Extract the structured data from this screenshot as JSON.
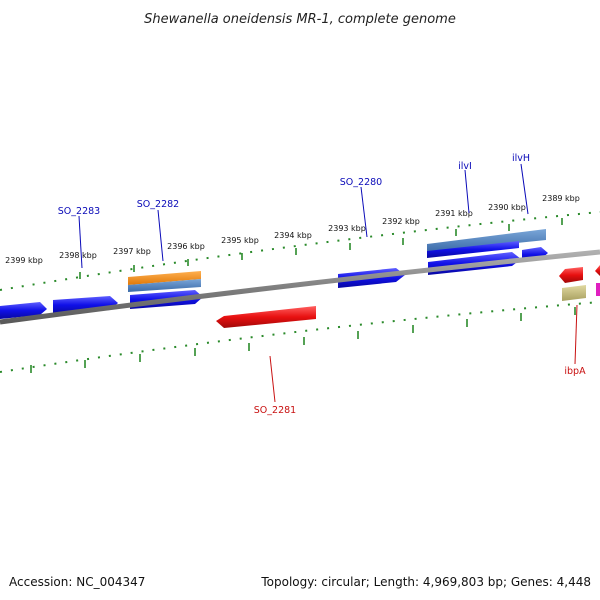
{
  "title": "Shewanella oneidensis MR-1, complete genome",
  "footer": {
    "accession": "Accession: NC_004347",
    "summary": "Topology: circular; Length: 4,969,803 bp; Genes: 4,448"
  },
  "colors": {
    "forward_gene": "#1010e8",
    "reverse_gene": "#e81010",
    "backbone": "#808080",
    "ticks": "#2a8a2a",
    "label_forward": "#0a0ab8",
    "label_reverse": "#c81010",
    "orange_feature": "#f08a10",
    "steelblue_feature": "#4a7ab8",
    "khaki_feature": "#c8c080",
    "magenta_feature": "#e020c0"
  },
  "scale_labels": [
    "2399 kbp",
    "2398 kbp",
    "2397 kbp",
    "2396 kbp",
    "2395 kbp",
    "2394 kbp",
    "2393 kbp",
    "2392 kbp",
    "2391 kbp",
    "2390 kbp",
    "2389 kbp"
  ],
  "gene_labels": [
    {
      "name": "SO_2283",
      "strand": "forward"
    },
    {
      "name": "SO_2282",
      "strand": "forward"
    },
    {
      "name": "SO_2280",
      "strand": "forward"
    },
    {
      "name": "ilvI",
      "strand": "forward"
    },
    {
      "name": "ilvH",
      "strand": "forward"
    },
    {
      "name": "SO_2281",
      "strand": "reverse"
    },
    {
      "name": "ibpA",
      "strand": "reverse"
    }
  ]
}
